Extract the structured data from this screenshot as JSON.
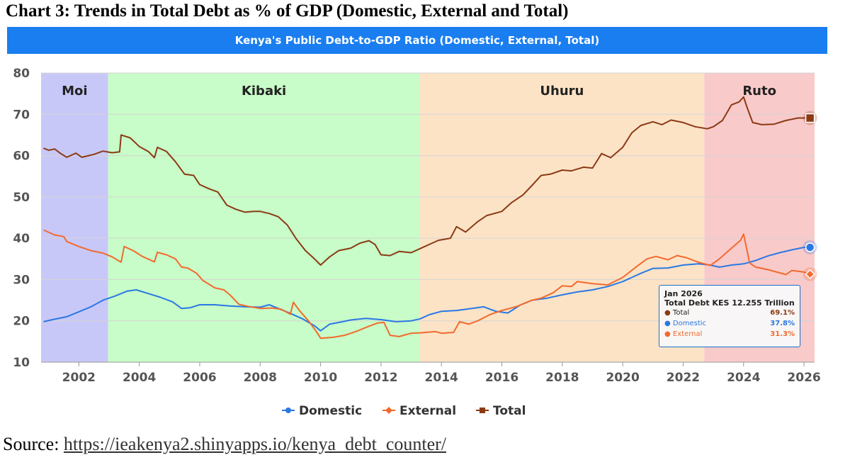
{
  "heading": "Chart 3: Trends in Total Debt as % of GDP (Domestic, External and Total)",
  "source_label": "Source:",
  "source_link": "https://ieakenya2.shinyapps.io/kenya_debt_counter/",
  "chart_data": {
    "type": "line",
    "title": "Kenya's Public Debt-to-GDP Ratio (Domestic, External, Total)",
    "xlabel": "",
    "ylabel": "",
    "xlim": [
      2000.75,
      2026.35
    ],
    "ylim": [
      10,
      80
    ],
    "y_ticks": [
      10,
      20,
      30,
      40,
      50,
      60,
      70,
      80
    ],
    "x_ticks": [
      2002,
      2004,
      2006,
      2008,
      2010,
      2012,
      2014,
      2016,
      2018,
      2020,
      2022,
      2024,
      2026
    ],
    "grid": "horizontal",
    "legend_position": "bottom-center",
    "eras": [
      {
        "label": "Moi",
        "start": 2000.75,
        "end": 2002.97,
        "color": "#c8c8f8"
      },
      {
        "label": "Kibaki",
        "start": 2002.97,
        "end": 2013.28,
        "color": "#c8fcc8"
      },
      {
        "label": "Uhuru",
        "start": 2013.28,
        "end": 2022.7,
        "color": "#fce3c6"
      },
      {
        "label": "Ruto",
        "start": 2022.7,
        "end": 2026.35,
        "color": "#f9caca"
      }
    ],
    "series": [
      {
        "name": "Domestic",
        "color": "#2a78e4",
        "marker": "circle",
        "points": [
          [
            2000.83,
            19.8
          ],
          [
            2001.2,
            20.4
          ],
          [
            2001.6,
            21.0
          ],
          [
            2002.0,
            22.2
          ],
          [
            2002.4,
            23.4
          ],
          [
            2002.8,
            25.0
          ],
          [
            2003.2,
            26.0
          ],
          [
            2003.6,
            27.2
          ],
          [
            2003.9,
            27.5
          ],
          [
            2004.3,
            26.6
          ],
          [
            2004.7,
            25.7
          ],
          [
            2005.1,
            24.6
          ],
          [
            2005.4,
            23.0
          ],
          [
            2005.7,
            23.2
          ],
          [
            2006.0,
            23.9
          ],
          [
            2006.5,
            23.9
          ],
          [
            2007.0,
            23.6
          ],
          [
            2007.5,
            23.4
          ],
          [
            2008.0,
            23.3
          ],
          [
            2008.3,
            23.9
          ],
          [
            2008.6,
            23.0
          ],
          [
            2009.0,
            21.8
          ],
          [
            2009.4,
            20.5
          ],
          [
            2009.8,
            18.8
          ],
          [
            2010.0,
            17.6
          ],
          [
            2010.3,
            19.2
          ],
          [
            2010.6,
            19.6
          ],
          [
            2011.0,
            20.2
          ],
          [
            2011.5,
            20.6
          ],
          [
            2012.0,
            20.3
          ],
          [
            2012.5,
            19.8
          ],
          [
            2013.0,
            20.0
          ],
          [
            2013.3,
            20.5
          ],
          [
            2013.6,
            21.5
          ],
          [
            2014.0,
            22.3
          ],
          [
            2014.5,
            22.5
          ],
          [
            2015.0,
            23.0
          ],
          [
            2015.4,
            23.4
          ],
          [
            2015.8,
            22.3
          ],
          [
            2016.2,
            21.9
          ],
          [
            2016.6,
            23.8
          ],
          [
            2017.0,
            25.0
          ],
          [
            2017.5,
            25.5
          ],
          [
            2018.0,
            26.3
          ],
          [
            2018.5,
            27.0
          ],
          [
            2019.0,
            27.5
          ],
          [
            2019.5,
            28.3
          ],
          [
            2020.0,
            29.5
          ],
          [
            2020.3,
            30.5
          ],
          [
            2020.6,
            31.5
          ],
          [
            2021.0,
            32.7
          ],
          [
            2021.5,
            32.8
          ],
          [
            2022.0,
            33.5
          ],
          [
            2022.5,
            33.8
          ],
          [
            2022.9,
            33.5
          ],
          [
            2023.2,
            33.0
          ],
          [
            2023.6,
            33.5
          ],
          [
            2024.0,
            33.8
          ],
          [
            2024.4,
            34.6
          ],
          [
            2024.8,
            35.7
          ],
          [
            2025.2,
            36.5
          ],
          [
            2025.6,
            37.2
          ],
          [
            2026.0,
            37.8
          ],
          [
            2026.2,
            37.8
          ]
        ]
      },
      {
        "name": "External",
        "color": "#f26a2e",
        "marker": "diamond",
        "points": [
          [
            2000.83,
            42.0
          ],
          [
            2001.2,
            40.8
          ],
          [
            2001.5,
            40.4
          ],
          [
            2001.6,
            39.2
          ],
          [
            2002.0,
            38.0
          ],
          [
            2002.4,
            37.0
          ],
          [
            2002.8,
            36.4
          ],
          [
            2003.1,
            35.5
          ],
          [
            2003.4,
            34.2
          ],
          [
            2003.5,
            38.0
          ],
          [
            2003.8,
            37.0
          ],
          [
            2004.1,
            35.6
          ],
          [
            2004.5,
            34.3
          ],
          [
            2004.6,
            36.6
          ],
          [
            2004.9,
            36.0
          ],
          [
            2005.2,
            35.0
          ],
          [
            2005.4,
            33.0
          ],
          [
            2005.6,
            32.8
          ],
          [
            2005.9,
            31.5
          ],
          [
            2006.1,
            29.8
          ],
          [
            2006.5,
            28.0
          ],
          [
            2006.8,
            27.5
          ],
          [
            2007.0,
            26.3
          ],
          [
            2007.3,
            24.0
          ],
          [
            2007.6,
            23.5
          ],
          [
            2008.0,
            23.0
          ],
          [
            2008.4,
            23.1
          ],
          [
            2008.7,
            22.8
          ],
          [
            2009.0,
            21.6
          ],
          [
            2009.1,
            24.5
          ],
          [
            2009.3,
            22.5
          ],
          [
            2009.6,
            20.0
          ],
          [
            2009.9,
            17.0
          ],
          [
            2010.0,
            15.8
          ],
          [
            2010.4,
            16.0
          ],
          [
            2010.8,
            16.5
          ],
          [
            2011.2,
            17.5
          ],
          [
            2011.6,
            18.7
          ],
          [
            2011.9,
            19.5
          ],
          [
            2012.1,
            19.6
          ],
          [
            2012.3,
            16.5
          ],
          [
            2012.6,
            16.2
          ],
          [
            2013.0,
            17.0
          ],
          [
            2013.3,
            17.1
          ],
          [
            2013.8,
            17.4
          ],
          [
            2014.0,
            17.0
          ],
          [
            2014.4,
            17.2
          ],
          [
            2014.6,
            19.8
          ],
          [
            2014.9,
            19.2
          ],
          [
            2015.2,
            20.0
          ],
          [
            2015.6,
            21.5
          ],
          [
            2016.0,
            22.5
          ],
          [
            2016.5,
            23.5
          ],
          [
            2017.0,
            25.0
          ],
          [
            2017.3,
            25.5
          ],
          [
            2017.7,
            26.8
          ],
          [
            2018.0,
            28.5
          ],
          [
            2018.3,
            28.3
          ],
          [
            2018.5,
            29.5
          ],
          [
            2019.0,
            29.0
          ],
          [
            2019.5,
            28.7
          ],
          [
            2020.0,
            30.5
          ],
          [
            2020.4,
            32.8
          ],
          [
            2020.8,
            35.0
          ],
          [
            2021.1,
            35.6
          ],
          [
            2021.5,
            34.8
          ],
          [
            2021.8,
            35.8
          ],
          [
            2022.1,
            35.3
          ],
          [
            2022.5,
            34.2
          ],
          [
            2022.9,
            33.4
          ],
          [
            2023.2,
            35.0
          ],
          [
            2023.6,
            37.6
          ],
          [
            2023.9,
            39.5
          ],
          [
            2024.0,
            41.0
          ],
          [
            2024.2,
            34.0
          ],
          [
            2024.4,
            33.0
          ],
          [
            2024.8,
            32.4
          ],
          [
            2025.1,
            31.8
          ],
          [
            2025.4,
            31.2
          ],
          [
            2025.6,
            32.2
          ],
          [
            2026.0,
            31.8
          ],
          [
            2026.2,
            31.3
          ]
        ]
      },
      {
        "name": "Total",
        "color": "#8b3a14",
        "marker": "square",
        "points": [
          [
            2000.83,
            61.8
          ],
          [
            2001.0,
            61.3
          ],
          [
            2001.2,
            61.6
          ],
          [
            2001.4,
            60.5
          ],
          [
            2001.6,
            59.6
          ],
          [
            2001.9,
            60.6
          ],
          [
            2002.1,
            59.6
          ],
          [
            2002.5,
            60.3
          ],
          [
            2002.8,
            61.1
          ],
          [
            2003.1,
            60.7
          ],
          [
            2003.35,
            60.9
          ],
          [
            2003.4,
            65.0
          ],
          [
            2003.7,
            64.3
          ],
          [
            2004.0,
            62.2
          ],
          [
            2004.3,
            61.0
          ],
          [
            2004.5,
            59.5
          ],
          [
            2004.6,
            62.0
          ],
          [
            2004.9,
            61.0
          ],
          [
            2005.2,
            58.5
          ],
          [
            2005.5,
            55.5
          ],
          [
            2005.8,
            55.2
          ],
          [
            2006.0,
            53.0
          ],
          [
            2006.3,
            52.0
          ],
          [
            2006.6,
            51.2
          ],
          [
            2006.9,
            48.0
          ],
          [
            2007.2,
            47.0
          ],
          [
            2007.5,
            46.3
          ],
          [
            2007.8,
            46.5
          ],
          [
            2008.0,
            46.5
          ],
          [
            2008.3,
            46.0
          ],
          [
            2008.6,
            45.2
          ],
          [
            2008.9,
            43.2
          ],
          [
            2009.2,
            39.8
          ],
          [
            2009.5,
            37.0
          ],
          [
            2009.8,
            35.0
          ],
          [
            2010.0,
            33.5
          ],
          [
            2010.3,
            35.5
          ],
          [
            2010.6,
            37.0
          ],
          [
            2011.0,
            37.6
          ],
          [
            2011.3,
            38.8
          ],
          [
            2011.6,
            39.4
          ],
          [
            2011.8,
            38.5
          ],
          [
            2012.0,
            36.0
          ],
          [
            2012.3,
            35.8
          ],
          [
            2012.6,
            36.8
          ],
          [
            2013.0,
            36.5
          ],
          [
            2013.3,
            37.5
          ],
          [
            2013.6,
            38.5
          ],
          [
            2013.9,
            39.5
          ],
          [
            2014.3,
            40.0
          ],
          [
            2014.5,
            42.8
          ],
          [
            2014.8,
            41.5
          ],
          [
            2015.2,
            44.0
          ],
          [
            2015.5,
            45.5
          ],
          [
            2016.0,
            46.5
          ],
          [
            2016.3,
            48.5
          ],
          [
            2016.7,
            50.5
          ],
          [
            2017.0,
            52.8
          ],
          [
            2017.3,
            55.2
          ],
          [
            2017.6,
            55.5
          ],
          [
            2018.0,
            56.5
          ],
          [
            2018.3,
            56.3
          ],
          [
            2018.7,
            57.2
          ],
          [
            2019.0,
            57.0
          ],
          [
            2019.3,
            60.5
          ],
          [
            2019.6,
            59.5
          ],
          [
            2020.0,
            62.0
          ],
          [
            2020.3,
            65.5
          ],
          [
            2020.6,
            67.3
          ],
          [
            2021.0,
            68.2
          ],
          [
            2021.3,
            67.5
          ],
          [
            2021.6,
            68.6
          ],
          [
            2022.0,
            68.0
          ],
          [
            2022.4,
            67.0
          ],
          [
            2022.8,
            66.5
          ],
          [
            2023.0,
            67.0
          ],
          [
            2023.3,
            68.5
          ],
          [
            2023.6,
            72.3
          ],
          [
            2023.85,
            73.0
          ],
          [
            2024.0,
            74.2
          ],
          [
            2024.1,
            72.0
          ],
          [
            2024.3,
            68.0
          ],
          [
            2024.6,
            67.5
          ],
          [
            2025.0,
            67.6
          ],
          [
            2025.4,
            68.5
          ],
          [
            2025.8,
            69.1
          ],
          [
            2026.2,
            69.1
          ]
        ]
      }
    ],
    "tooltip": {
      "date": "Jan 2026",
      "headline": "Total Debt KES 12.255 Trillion",
      "rows": [
        {
          "name": "Total",
          "value": "69.1%",
          "color": "#8b3a14"
        },
        {
          "name": "Domestic",
          "value": "37.8%",
          "color": "#2a78e4"
        },
        {
          "name": "External",
          "value": "31.3%",
          "color": "#f26a2e"
        }
      ]
    }
  }
}
